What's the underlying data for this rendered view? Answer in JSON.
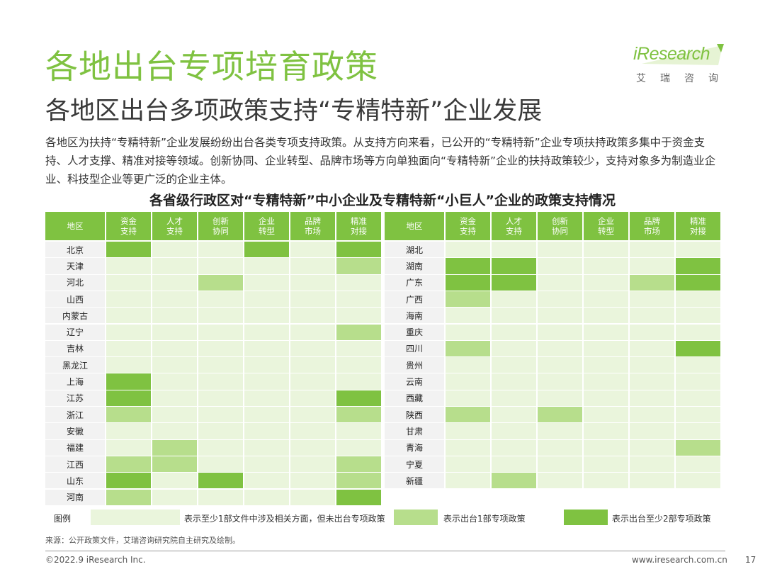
{
  "header": {
    "title": "各地出台专项培育政策",
    "subtitle": "各地区出台多项政策支持“专精特新”企业发展",
    "logo_text": "iResearch",
    "logo_sub": "艾瑞咨询"
  },
  "body_text": "各地区为扶持“专精特新”企业发展纷纷出台各类专项支持政策。从支持方向来看，已公开的“专精特新”企业专项扶持政策多集中于资金支持、人才支撑、精准对接等领域。创新协同、企业转型、品牌市场等方向单独面向“专精特新”企业的扶持政策较少，支持对象多为制造业企业、科技型企业等更广泛的企业主体。",
  "colors": {
    "level0": "#eaf5dc",
    "level1": "#b7de8c",
    "level2": "#7fc241",
    "header": "#7fc241",
    "region": "#f2f2f2"
  },
  "chart_data": {
    "type": "heatmap",
    "title": "各省级行政区对“专精特新”中小企业及专精特新“小巨人”企业的政策支持情况",
    "region_header": "地区",
    "columns": [
      "资金\n支持",
      "人才\n支持",
      "创新\n协同",
      "企业\n转型",
      "品牌\n市场",
      "精准\n对接"
    ],
    "left": [
      {
        "region": "北京",
        "values": [
          2,
          0,
          0,
          2,
          0,
          2
        ]
      },
      {
        "region": "天津",
        "values": [
          0,
          0,
          0,
          0,
          0,
          1
        ]
      },
      {
        "region": "河北",
        "values": [
          0,
          0,
          1,
          0,
          0,
          0
        ]
      },
      {
        "region": "山西",
        "values": [
          0,
          0,
          0,
          0,
          0,
          0
        ]
      },
      {
        "region": "内蒙古",
        "values": [
          0,
          0,
          0,
          0,
          0,
          0
        ]
      },
      {
        "region": "辽宁",
        "values": [
          0,
          0,
          0,
          0,
          0,
          1
        ]
      },
      {
        "region": "吉林",
        "values": [
          0,
          0,
          0,
          0,
          0,
          0
        ]
      },
      {
        "region": "黑龙江",
        "values": [
          0,
          0,
          0,
          0,
          0,
          0
        ]
      },
      {
        "region": "上海",
        "values": [
          2,
          0,
          0,
          0,
          0,
          0
        ]
      },
      {
        "region": "江苏",
        "values": [
          2,
          0,
          0,
          0,
          0,
          2
        ]
      },
      {
        "region": "浙江",
        "values": [
          1,
          0,
          0,
          0,
          0,
          1
        ]
      },
      {
        "region": "安徽",
        "values": [
          0,
          0,
          0,
          0,
          0,
          0
        ]
      },
      {
        "region": "福建",
        "values": [
          0,
          1,
          0,
          0,
          0,
          0
        ]
      },
      {
        "region": "江西",
        "values": [
          1,
          1,
          0,
          0,
          0,
          1
        ]
      },
      {
        "region": "山东",
        "values": [
          2,
          0,
          2,
          0,
          0,
          1
        ]
      },
      {
        "region": "河南",
        "values": [
          1,
          0,
          0,
          0,
          0,
          2
        ]
      }
    ],
    "right": [
      {
        "region": "湖北",
        "values": [
          0,
          0,
          0,
          0,
          0,
          0
        ]
      },
      {
        "region": "湖南",
        "values": [
          2,
          2,
          0,
          0,
          0,
          2
        ]
      },
      {
        "region": "广东",
        "values": [
          2,
          2,
          0,
          0,
          1,
          2
        ]
      },
      {
        "region": "广西",
        "values": [
          1,
          0,
          0,
          0,
          0,
          0
        ]
      },
      {
        "region": "海南",
        "values": [
          0,
          0,
          0,
          0,
          0,
          0
        ]
      },
      {
        "region": "重庆",
        "values": [
          0,
          0,
          0,
          0,
          0,
          0
        ]
      },
      {
        "region": "四川",
        "values": [
          1,
          0,
          0,
          0,
          0,
          2
        ]
      },
      {
        "region": "贵州",
        "values": [
          0,
          0,
          0,
          0,
          0,
          0
        ]
      },
      {
        "region": "云南",
        "values": [
          0,
          0,
          0,
          0,
          0,
          0
        ]
      },
      {
        "region": "西藏",
        "values": [
          0,
          0,
          0,
          0,
          0,
          0
        ]
      },
      {
        "region": "陕西",
        "values": [
          1,
          0,
          1,
          0,
          0,
          0
        ]
      },
      {
        "region": "甘肃",
        "values": [
          0,
          0,
          0,
          0,
          0,
          0
        ]
      },
      {
        "region": "青海",
        "values": [
          0,
          0,
          0,
          0,
          0,
          1
        ]
      },
      {
        "region": "宁夏",
        "values": [
          0,
          0,
          0,
          0,
          0,
          0
        ]
      },
      {
        "region": "新疆",
        "values": [
          0,
          1,
          0,
          0,
          0,
          0
        ]
      }
    ],
    "legend": {
      "title": "图例",
      "items": [
        {
          "level": 0,
          "label": "表示至少1部文件中涉及相关方面，但未出台专项政策"
        },
        {
          "level": 1,
          "label": "表示出台1部专项政策"
        },
        {
          "level": 2,
          "label": "表示出台至少2部专项政策"
        }
      ]
    }
  },
  "footer": {
    "source": "来源：公开政策文件，艾瑞咨询研究院自主研究及绘制。",
    "copyright": "©2022.9 iResearch Inc.",
    "website": "www.iresearch.com.cn",
    "page": "17"
  }
}
